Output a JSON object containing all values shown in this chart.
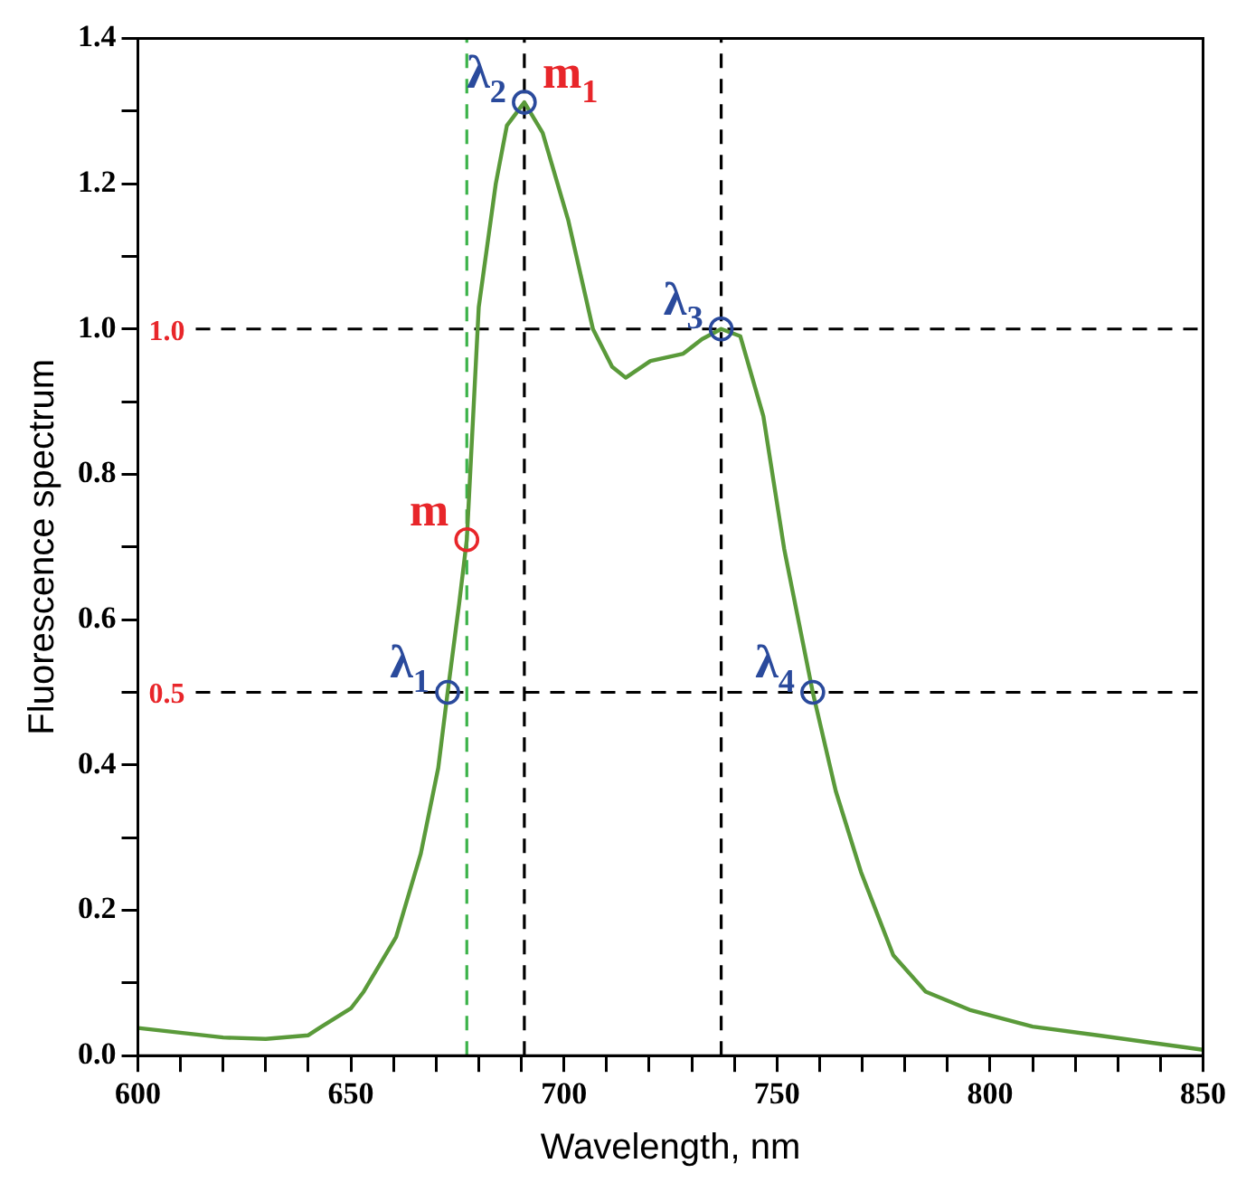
{
  "chart_data": {
    "type": "line",
    "xlabel": "Wavelength, nm",
    "ylabel": "Fluorescence spectrum",
    "xlim": [
      600,
      850
    ],
    "xticks": [
      600,
      {
        "value": 610,
        "label": null
      },
      {
        "value": 620,
        "label": null
      },
      {
        "value": 630,
        "label": null
      },
      {
        "value": 640,
        "label": null
      },
      650,
      {
        "value": 660,
        "label": null
      },
      {
        "value": 670,
        "label": null
      },
      {
        "value": 680,
        "label": null
      },
      {
        "value": 690,
        "label": null
      },
      700,
      {
        "value": 710,
        "label": null
      },
      {
        "value": 720,
        "label": null
      },
      {
        "value": 730,
        "label": null
      },
      {
        "value": 740,
        "label": null
      },
      750,
      {
        "value": 760,
        "label": null
      },
      {
        "value": 770,
        "label": null
      },
      {
        "value": 780,
        "label": null
      },
      {
        "value": 790,
        "label": null
      },
      800,
      {
        "value": 810,
        "label": null
      },
      {
        "value": 820,
        "label": null
      },
      {
        "value": 830,
        "label": null
      },
      {
        "value": 840,
        "label": null
      },
      850
    ],
    "ylim": [
      0,
      1.4
    ],
    "yticks": [
      {
        "value": 0,
        "label": "0.0"
      },
      {
        "value": 0.1,
        "label": null
      },
      {
        "value": 0.2,
        "label": "0.2"
      },
      {
        "value": 0.3,
        "label": null
      },
      {
        "value": 0.4,
        "label": "0.4"
      },
      {
        "value": 0.5,
        "label": null
      },
      {
        "value": 0.6,
        "label": "0.6"
      },
      {
        "value": 0.7,
        "label": null
      },
      {
        "value": 0.8,
        "label": "0.8"
      },
      {
        "value": 0.9,
        "label": null
      },
      {
        "value": 1.0,
        "label": "1.0"
      },
      {
        "value": 1.1,
        "label": null
      },
      {
        "value": 1.2,
        "label": "1.2"
      },
      {
        "value": 1.3,
        "label": null
      },
      {
        "value": 1.4,
        "label": "1.4"
      }
    ],
    "grid": false,
    "legend": false,
    "series": [
      {
        "color": "#5a9a3a",
        "marker": "none",
        "line_style": "solid",
        "x": [
          600,
          620,
          630,
          640,
          642.6,
          650,
          653,
          660.6,
          666.4,
          670.5,
          672.7,
          675.4,
          677.2,
          680,
          684,
          686.6,
          690.7,
          695,
          701,
          706.8,
          711.3,
          714.5,
          720.3,
          728,
          732.4,
          736.9,
          741.4,
          746.8,
          751.7,
          758.4,
          763.8,
          769.7,
          777.3,
          784.9,
          795.2,
          810,
          825.3,
          850
        ],
        "values": [
          0.038,
          0.025,
          0.023,
          0.028,
          0.038,
          0.065,
          0.088,
          0.163,
          0.278,
          0.396,
          0.5,
          0.622,
          0.71,
          1.03,
          1.2,
          1.28,
          1.312,
          1.27,
          1.15,
          1.0,
          0.948,
          0.933,
          0.956,
          0.966,
          0.986,
          1.0,
          0.99,
          0.88,
          0.697,
          0.5,
          0.364,
          0.253,
          0.138,
          0.088,
          0.063,
          0.04,
          0.028,
          0.008
        ]
      },
      {
        "type": "scatter",
        "marker": "circle",
        "x": [
          672.7,
          690.7,
          736.9,
          758.4,
          677.2
        ],
        "values": [
          0.5,
          1.312,
          1.0,
          0.5,
          0.71
        ],
        "colors": [
          "#2a4a9c",
          "#2a4a9c",
          "#2a4a9c",
          "#2a4a9c",
          "#e8262a"
        ]
      }
    ],
    "ref_lines": [
      {
        "axis": "y",
        "value": 1.0,
        "label": "1.0",
        "color": "#000000",
        "line_style": "dashed"
      },
      {
        "axis": "y",
        "value": 0.5,
        "label": "0.5",
        "color": "#000000",
        "line_style": "dashed"
      },
      {
        "axis": "x",
        "value": 677.2,
        "color": "#3cb34a",
        "line_style": "dashed"
      },
      {
        "axis": "x",
        "value": 690.7,
        "color": "#000000",
        "line_style": "dashed"
      },
      {
        "axis": "x",
        "value": 736.9,
        "color": "#000000",
        "line_style": "dashed"
      }
    ],
    "annotations": [
      {
        "text": "λ$_{1}$",
        "x": 672.7,
        "y": 0.5
      },
      {
        "text": "λ$_{2}$",
        "x": 690.7,
        "y": 1.312
      },
      {
        "text": "m$_{1}$",
        "x": 690.7,
        "y": 1.312
      },
      {
        "text": "λ$_{3}$",
        "x": 736.9,
        "y": 1.0
      },
      {
        "text": "λ$_{4}$",
        "x": 758.4,
        "y": 0.5
      },
      {
        "text": "m",
        "x": 677.2,
        "y": 0.71
      }
    ]
  }
}
